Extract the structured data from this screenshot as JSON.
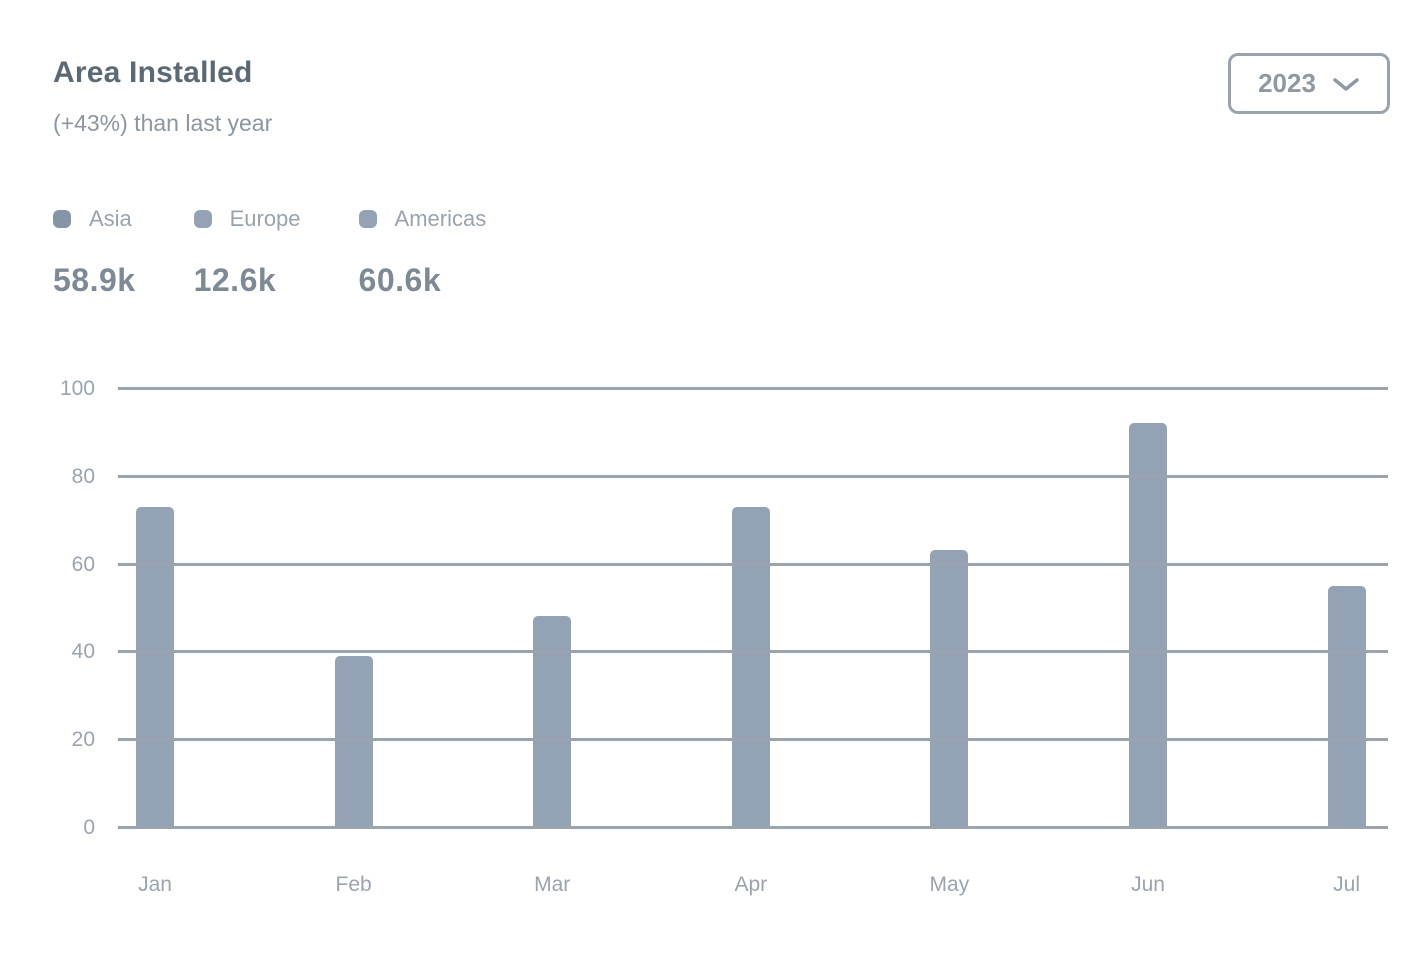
{
  "card": {
    "title": "Area Installed",
    "subtitle": "(+43%) than last year",
    "year_select": {
      "value": "2023",
      "icon": "chevron-down-icon"
    }
  },
  "legend": {
    "items": [
      {
        "label": "Asia",
        "total": "58.9k"
      },
      {
        "label": "Europe",
        "total": "12.6k"
      },
      {
        "label": "Americas",
        "total": "60.6k"
      }
    ]
  },
  "chart_data": {
    "type": "bar",
    "title": "Area Installed",
    "categories": [
      "Jan",
      "Feb",
      "Mar",
      "Apr",
      "May",
      "Jun",
      "Jul"
    ],
    "series": [
      {
        "name": "Asia",
        "values": [
          73,
          39,
          48,
          73,
          63,
          92,
          55
        ]
      }
    ],
    "xlabel": "",
    "ylabel": "",
    "ylim": [
      0,
      100
    ],
    "yticks": [
      0,
      20,
      40,
      60,
      80,
      100
    ],
    "grid": true,
    "legend_position": "top-left-above-chart"
  },
  "colors": {
    "bar": "#93A2B4",
    "grid": "#9BA3AC",
    "title": "#5B6975",
    "subtitle": "#8C96A0",
    "legend_label": "#99A3AE",
    "legend_total": "#7D8A96",
    "axis_label": "#9AA4AE",
    "button_border": "#9AA3AC",
    "button_text": "#8E99A4",
    "markers": [
      "#8595A8",
      "#93A2B4",
      "#93A2B4"
    ]
  }
}
